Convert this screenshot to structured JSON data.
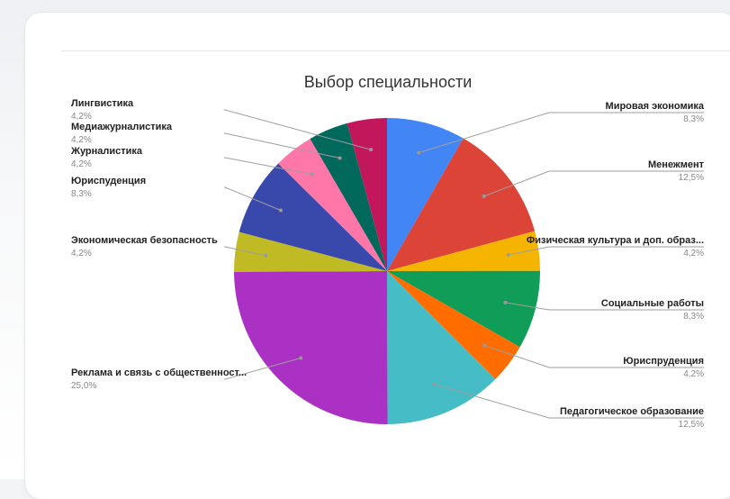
{
  "chart_data": {
    "type": "pie",
    "title": "Выбор специальности",
    "slices": [
      {
        "label": "Мировая экономика",
        "value": 8.3,
        "pct_label": "8,3%",
        "color": "#4285f4",
        "side": "right"
      },
      {
        "label": "Менежмент",
        "value": 12.5,
        "pct_label": "12,5%",
        "color": "#db4437",
        "side": "right"
      },
      {
        "label": "Физическая культура и доп. образ...",
        "value": 4.2,
        "pct_label": "4,2%",
        "color": "#f4b400",
        "side": "right"
      },
      {
        "label": "Социальные работы",
        "value": 8.3,
        "pct_label": "8,3%",
        "color": "#0f9d58",
        "side": "right"
      },
      {
        "label": "Юриспруденция",
        "value": 4.2,
        "pct_label": "4,2%",
        "color": "#ff6d00",
        "side": "right"
      },
      {
        "label": "Педагогическое образование",
        "value": 12.5,
        "pct_label": "12,5%",
        "color": "#46bdc6",
        "side": "right"
      },
      {
        "label": "Реклама и связь с общественност...",
        "value": 25.0,
        "pct_label": "25,0%",
        "color": "#ab30c4",
        "side": "left"
      },
      {
        "label": "Экономическая безопасность",
        "value": 4.2,
        "pct_label": "4,2%",
        "color": "#c0ba25",
        "side": "left"
      },
      {
        "label": "Юриспуденция",
        "value": 8.3,
        "pct_label": "8,3%",
        "color": "#3949ab",
        "side": "left"
      },
      {
        "label": "Журналистика",
        "value": 4.2,
        "pct_label": "4,2%",
        "color": "#ff77a9",
        "side": "left"
      },
      {
        "label": "Медиажурналистика",
        "value": 4.2,
        "pct_label": "4,2%",
        "color": "#00695c",
        "side": "left"
      },
      {
        "label": "Лингвистика",
        "value": 4.2,
        "pct_label": "4,2%",
        "color": "#c2185b",
        "side": "left"
      }
    ]
  }
}
